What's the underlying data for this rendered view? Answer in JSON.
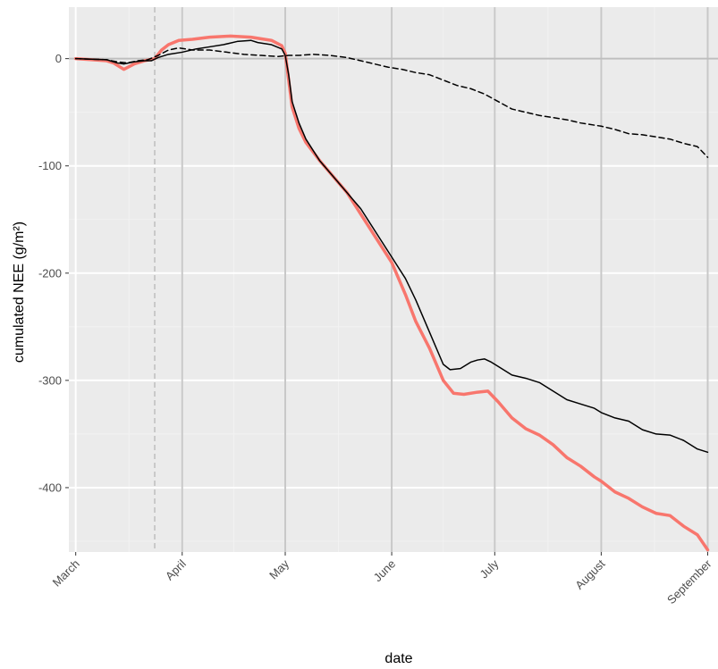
{
  "chart_data": {
    "type": "line",
    "title": "",
    "xlabel": "date",
    "ylabel": "cumulated NEE (g/m²)",
    "x_ticks": [
      "March",
      "April",
      "May",
      "June",
      "July",
      "August",
      "September"
    ],
    "x_tick_days": [
      1,
      32,
      62,
      93,
      123,
      154,
      185
    ],
    "xlim": [
      -1,
      188
    ],
    "y_ticks": [
      0,
      -100,
      -200,
      -300,
      -400
    ],
    "ylim": [
      -460,
      48
    ],
    "grid": true,
    "legend": "none",
    "vline_day": 24,
    "series": [
      {
        "color": "#F8766D",
        "style": "solid",
        "points": [
          [
            1,
            0
          ],
          [
            10,
            -2
          ],
          [
            12,
            -4
          ],
          [
            15,
            -10
          ],
          [
            18,
            -5
          ],
          [
            21,
            -2
          ],
          [
            24,
            0
          ],
          [
            26,
            8
          ],
          [
            28,
            13
          ],
          [
            31,
            17
          ],
          [
            35,
            18
          ],
          [
            40,
            20
          ],
          [
            46,
            21
          ],
          [
            52,
            20
          ],
          [
            58,
            17
          ],
          [
            61,
            12
          ],
          [
            62,
            5
          ],
          [
            63,
            -20
          ],
          [
            64,
            -45
          ],
          [
            66,
            -65
          ],
          [
            68,
            -78
          ],
          [
            72,
            -95
          ],
          [
            76,
            -110
          ],
          [
            80,
            -125
          ],
          [
            84,
            -145
          ],
          [
            88,
            -165
          ],
          [
            93,
            -190
          ],
          [
            97,
            -220
          ],
          [
            100,
            -245
          ],
          [
            104,
            -270
          ],
          [
            108,
            -300
          ],
          [
            111,
            -312
          ],
          [
            114,
            -313
          ],
          [
            118,
            -311
          ],
          [
            121,
            -310
          ],
          [
            124,
            -320
          ],
          [
            128,
            -335
          ],
          [
            132,
            -345
          ],
          [
            136,
            -351
          ],
          [
            140,
            -360
          ],
          [
            144,
            -372
          ],
          [
            148,
            -380
          ],
          [
            152,
            -390
          ],
          [
            154,
            -394
          ],
          [
            158,
            -404
          ],
          [
            162,
            -410
          ],
          [
            166,
            -418
          ],
          [
            170,
            -424
          ],
          [
            174,
            -426
          ],
          [
            178,
            -436
          ],
          [
            182,
            -444
          ],
          [
            185,
            -458
          ]
        ]
      },
      {
        "color": "#000000",
        "style": "solid",
        "points": [
          [
            1,
            0
          ],
          [
            10,
            -1
          ],
          [
            13,
            -4
          ],
          [
            15,
            -5
          ],
          [
            18,
            -3
          ],
          [
            21,
            -2
          ],
          [
            23,
            -2
          ],
          [
            25,
            1
          ],
          [
            28,
            4
          ],
          [
            32,
            6
          ],
          [
            36,
            9
          ],
          [
            40,
            11
          ],
          [
            44,
            13
          ],
          [
            48,
            16
          ],
          [
            52,
            17
          ],
          [
            54,
            15
          ],
          [
            58,
            13
          ],
          [
            61,
            9
          ],
          [
            62,
            3
          ],
          [
            63,
            -15
          ],
          [
            64,
            -40
          ],
          [
            66,
            -60
          ],
          [
            68,
            -75
          ],
          [
            72,
            -95
          ],
          [
            76,
            -110
          ],
          [
            80,
            -125
          ],
          [
            84,
            -140
          ],
          [
            88,
            -160
          ],
          [
            93,
            -185
          ],
          [
            97,
            -205
          ],
          [
            100,
            -225
          ],
          [
            104,
            -255
          ],
          [
            108,
            -285
          ],
          [
            110,
            -290
          ],
          [
            113,
            -289
          ],
          [
            116,
            -283
          ],
          [
            118,
            -281
          ],
          [
            120,
            -280
          ],
          [
            122,
            -283
          ],
          [
            124,
            -287
          ],
          [
            128,
            -295
          ],
          [
            132,
            -298
          ],
          [
            136,
            -302
          ],
          [
            140,
            -310
          ],
          [
            144,
            -318
          ],
          [
            148,
            -322
          ],
          [
            152,
            -326
          ],
          [
            154,
            -330
          ],
          [
            158,
            -335
          ],
          [
            162,
            -338
          ],
          [
            166,
            -346
          ],
          [
            170,
            -350
          ],
          [
            174,
            -351
          ],
          [
            178,
            -356
          ],
          [
            182,
            -364
          ],
          [
            185,
            -367
          ]
        ]
      },
      {
        "color": "#000000",
        "style": "dashed",
        "points": [
          [
            1,
            0
          ],
          [
            10,
            -1
          ],
          [
            13,
            -3
          ],
          [
            16,
            -4
          ],
          [
            19,
            -2
          ],
          [
            22,
            -1
          ],
          [
            25,
            3
          ],
          [
            28,
            8
          ],
          [
            31,
            10
          ],
          [
            35,
            8
          ],
          [
            40,
            8
          ],
          [
            45,
            6
          ],
          [
            50,
            4
          ],
          [
            55,
            3
          ],
          [
            60,
            2
          ],
          [
            63,
            3
          ],
          [
            66,
            3
          ],
          [
            70,
            4
          ],
          [
            75,
            3
          ],
          [
            80,
            1
          ],
          [
            84,
            -2
          ],
          [
            88,
            -5
          ],
          [
            92,
            -8
          ],
          [
            96,
            -10
          ],
          [
            100,
            -13
          ],
          [
            104,
            -15
          ],
          [
            108,
            -20
          ],
          [
            112,
            -25
          ],
          [
            116,
            -28
          ],
          [
            120,
            -33
          ],
          [
            124,
            -40
          ],
          [
            128,
            -47
          ],
          [
            132,
            -50
          ],
          [
            136,
            -53
          ],
          [
            140,
            -55
          ],
          [
            144,
            -57
          ],
          [
            148,
            -60
          ],
          [
            152,
            -62
          ],
          [
            154,
            -63
          ],
          [
            158,
            -66
          ],
          [
            162,
            -70
          ],
          [
            166,
            -71
          ],
          [
            170,
            -73
          ],
          [
            174,
            -75
          ],
          [
            178,
            -79
          ],
          [
            182,
            -82
          ],
          [
            185,
            -92
          ]
        ]
      }
    ]
  }
}
